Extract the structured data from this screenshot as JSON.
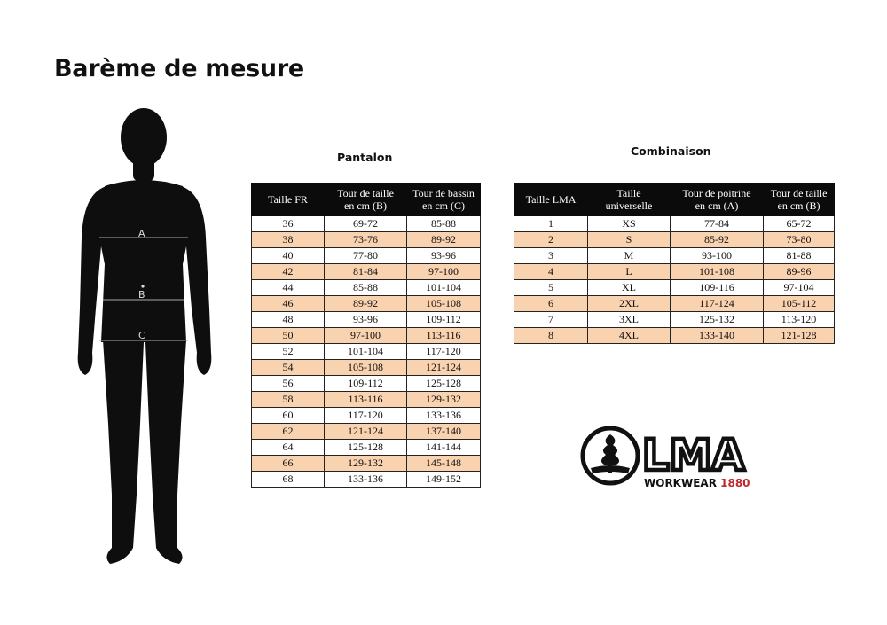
{
  "page": {
    "title": "Barème de mesure"
  },
  "figure": {
    "labels": [
      "A",
      "B",
      "C"
    ]
  },
  "pantalon": {
    "title": "Pantalon",
    "headers": [
      "Taille FR",
      "Tour de taille\nen cm (B)",
      "Tour de bassin\nen cm (C)"
    ],
    "rows": [
      [
        "36",
        "69-72",
        "85-88"
      ],
      [
        "38",
        "73-76",
        "89-92"
      ],
      [
        "40",
        "77-80",
        "93-96"
      ],
      [
        "42",
        "81-84",
        "97-100"
      ],
      [
        "44",
        "85-88",
        "101-104"
      ],
      [
        "46",
        "89-92",
        "105-108"
      ],
      [
        "48",
        "93-96",
        "109-112"
      ],
      [
        "50",
        "97-100",
        "113-116"
      ],
      [
        "52",
        "101-104",
        "117-120"
      ],
      [
        "54",
        "105-108",
        "121-124"
      ],
      [
        "56",
        "109-112",
        "125-128"
      ],
      [
        "58",
        "113-116",
        "129-132"
      ],
      [
        "60",
        "117-120",
        "133-136"
      ],
      [
        "62",
        "121-124",
        "137-140"
      ],
      [
        "64",
        "125-128",
        "141-144"
      ],
      [
        "66",
        "129-132",
        "145-148"
      ],
      [
        "68",
        "133-136",
        "149-152"
      ]
    ]
  },
  "combinaison": {
    "title": "Combinaison",
    "headers": [
      "Taille LMA",
      "Taille\nuniverselle",
      "Tour de poitrine\nen cm (A)",
      "Tour de taille\nen cm (B)"
    ],
    "rows": [
      [
        "1",
        "XS",
        "77-84",
        "65-72"
      ],
      [
        "2",
        "S",
        "85-92",
        "73-80"
      ],
      [
        "3",
        "M",
        "93-100",
        "81-88"
      ],
      [
        "4",
        "L",
        "101-108",
        "89-96"
      ],
      [
        "5",
        "XL",
        "109-116",
        "97-104"
      ],
      [
        "6",
        "2XL",
        "117-124",
        "105-112"
      ],
      [
        "7",
        "3XL",
        "125-132",
        "113-120"
      ],
      [
        "8",
        "4XL",
        "133-140",
        "121-128"
      ]
    ]
  },
  "logo": {
    "brand": "LMA",
    "tagline_prefix": "WORKWEAR ",
    "tagline_year": "1880",
    "year_color": "#c0272d"
  },
  "colors": {
    "header_bg": "#0b0b0b",
    "alt_row": "#f9d2b0"
  }
}
